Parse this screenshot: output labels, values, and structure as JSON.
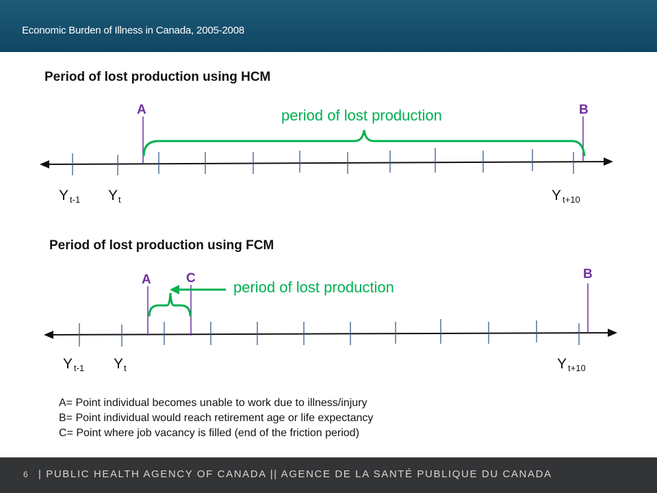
{
  "header": {
    "title": "Economic Burden of Illness in Canada, 2005-2008"
  },
  "hcm": {
    "title": "Period of lost production using HCM",
    "marker_a": "A",
    "marker_b": "B",
    "period_label": "period of lost production",
    "ticks": {
      "left_sub": "t-1",
      "middle_sub": "t",
      "right_sub": "t+10",
      "letter": "Y"
    }
  },
  "fcm": {
    "title": "Period of lost production using FCM",
    "marker_a": "A",
    "marker_b": "B",
    "marker_c": "C",
    "period_label": "period of lost production",
    "ticks": {
      "left_sub": "t-1",
      "middle_sub": "t",
      "right_sub": "t+10",
      "letter": "Y"
    }
  },
  "legend": [
    "A= Point individual becomes unable to work due to illness/injury",
    "B= Point individual would reach retirement age or life expectancy",
    "C= Point where job vacancy is filled (end of the friction period)"
  ],
  "footer": {
    "page_number": "6",
    "agency": "| PUBLIC HEALTH AGENCY OF CANADA || AGENCE DE LA SANTÉ PUBLIQUE DU CANADA"
  },
  "colors": {
    "header_bg": "#0f4663",
    "marker": "#7030a0",
    "bracket": "#00b050",
    "footer_bg": "#333436"
  }
}
